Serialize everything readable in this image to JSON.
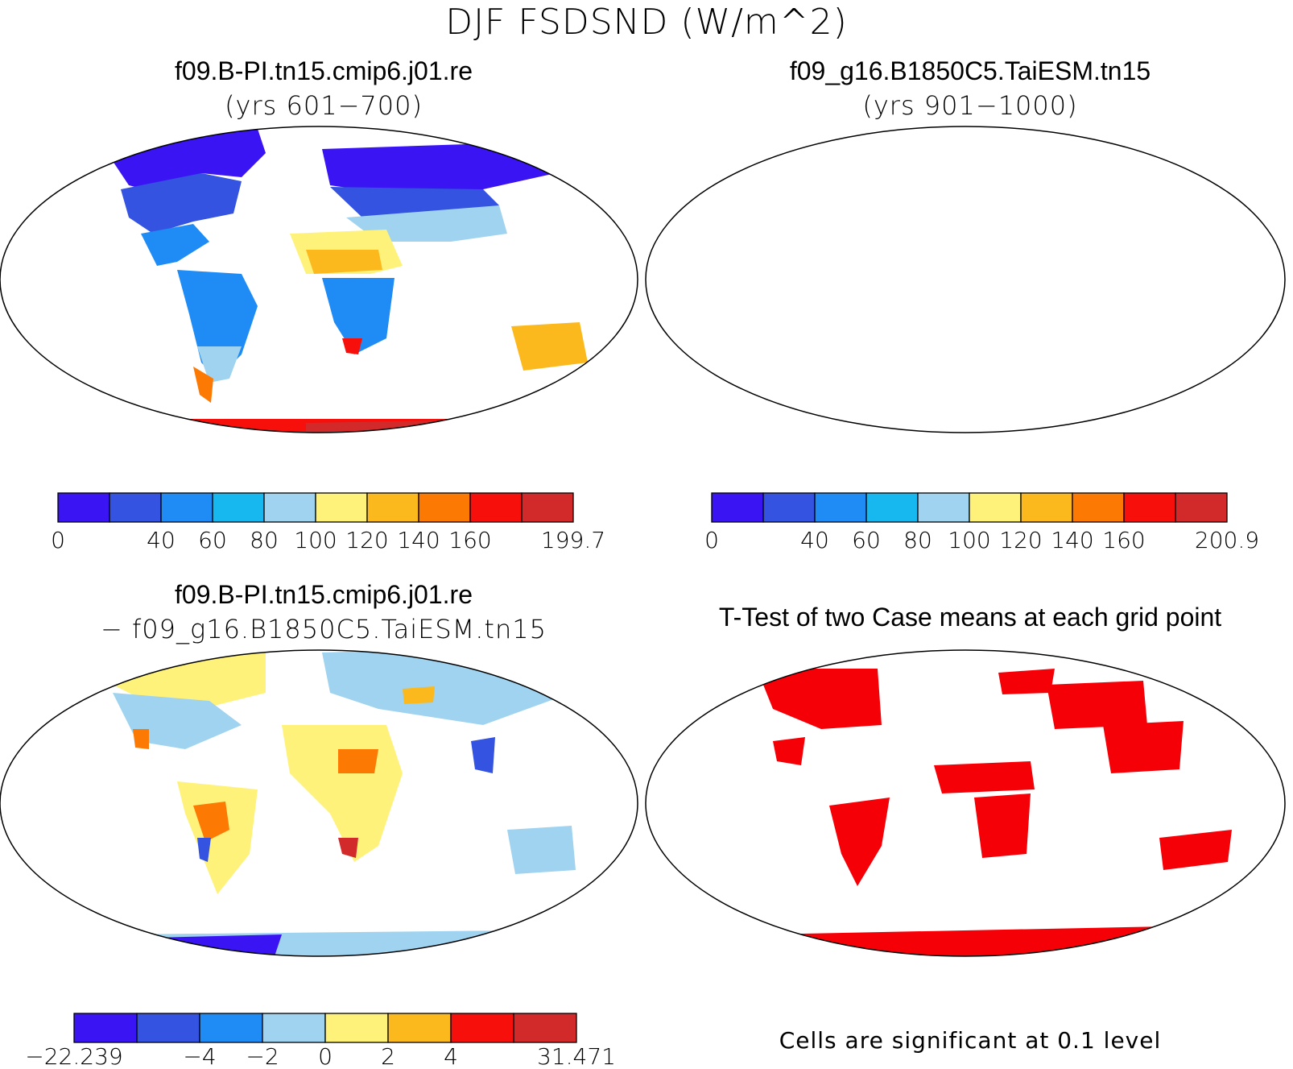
{
  "figure": {
    "title": "DJF FSDSND (W/m^2)",
    "colors": {
      "c1": "#3a14f2",
      "c2": "#3353e0",
      "c3": "#1f8cf5",
      "c4": "#17b7f0",
      "c5": "#9fd3ef",
      "c6": "#fff27a",
      "c7": "#fbb91e",
      "c8": "#fc7a04",
      "c9": "#f60f0b",
      "c10": "#d22a2a",
      "sig": "#f60008"
    }
  },
  "panels": {
    "case1": {
      "title": "f09.B-PI.tn15.cmip6.j01.re",
      "subtitle": "(yrs 601−700)"
    },
    "case2": {
      "title": "f09_g16.B1850C5.TaiESM.tn15",
      "subtitle": "(yrs 901−1000)"
    },
    "diff": {
      "title": "f09.B-PI.tn15.cmip6.j01.re",
      "subtitle": "− f09_g16.B1850C5.TaiESM.tn15"
    },
    "ttest": {
      "title": "T-Test of two Case means at each grid point",
      "note": "Cells are significant at 0.1 level"
    }
  },
  "colorbars": {
    "case1": {
      "labels": [
        "0",
        "40",
        "60",
        "80",
        "100",
        "120",
        "140",
        "160",
        "199.7"
      ],
      "positions": [
        0,
        2,
        3,
        4,
        5,
        6,
        7,
        8,
        10
      ]
    },
    "case2": {
      "labels": [
        "0",
        "40",
        "60",
        "80",
        "100",
        "120",
        "140",
        "160",
        "200.9"
      ],
      "positions": [
        0,
        2,
        3,
        4,
        5,
        6,
        7,
        8,
        10
      ]
    },
    "diff": {
      "labels": [
        "−22.239",
        "−4",
        "−2",
        "0",
        "2",
        "4",
        "31.471"
      ],
      "positions": [
        0,
        2,
        3,
        4,
        5,
        6,
        8
      ]
    }
  }
}
